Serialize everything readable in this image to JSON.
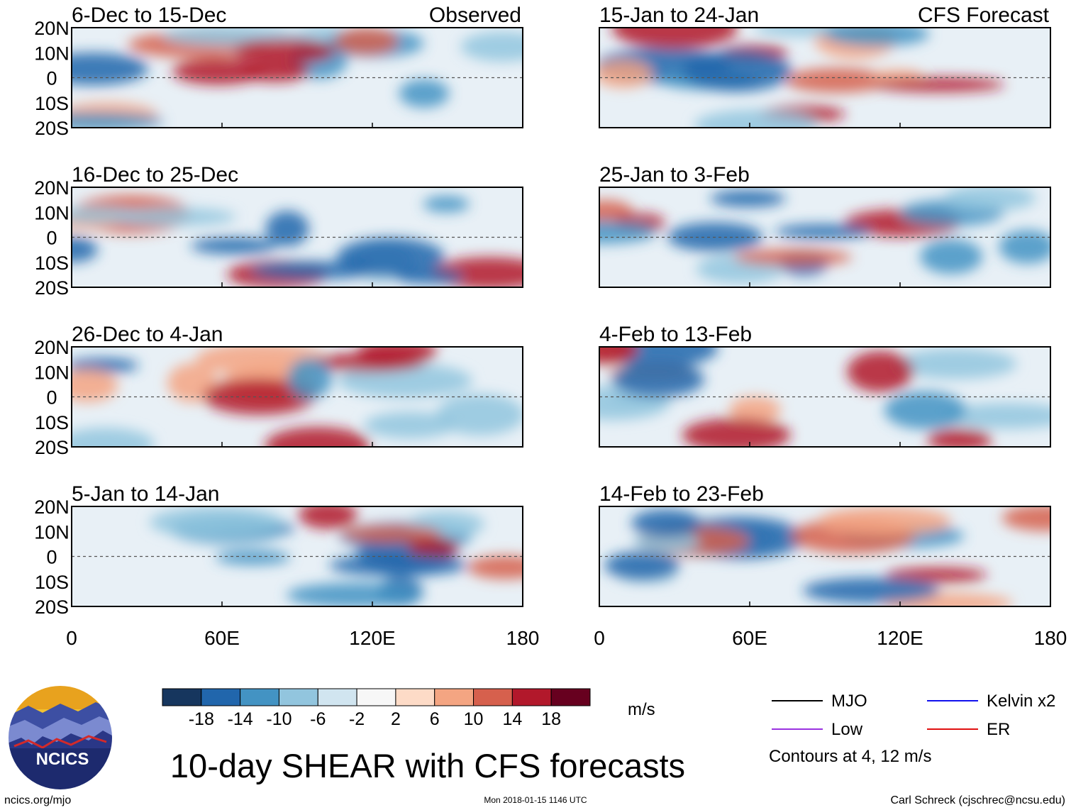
{
  "chart_data": {
    "type": "heatmap",
    "title": "10-day SHEAR with CFS forecasts",
    "units": "m/s",
    "columns": [
      {
        "label": "Observed",
        "panels": [
          "6-Dec to 15-Dec",
          "16-Dec to 25-Dec",
          "26-Dec to 4-Jan",
          "5-Jan to 14-Jan"
        ]
      },
      {
        "label": "CFS Forecast",
        "panels": [
          "15-Jan to 24-Jan",
          "25-Jan to 3-Feb",
          "4-Feb to 13-Feb",
          "14-Feb to 23-Feb"
        ]
      }
    ],
    "y_axis": {
      "ticks": [
        "20N",
        "10N",
        "0",
        "10S",
        "20S"
      ],
      "range": [
        -20,
        20
      ]
    },
    "x_axis": {
      "ticks": [
        "0",
        "60E",
        "120E",
        "180"
      ],
      "range": [
        0,
        180
      ]
    },
    "colorbar": {
      "levels": [
        "-18",
        "-14",
        "-10",
        "-6",
        "-2",
        "2",
        "6",
        "10",
        "14",
        "18"
      ],
      "colors": [
        "#16365e",
        "#2166ac",
        "#4393c3",
        "#92c5de",
        "#d1e5f0",
        "#f7f7f7",
        "#fddbc7",
        "#f4a582",
        "#d6604d",
        "#b2182b",
        "#67001f"
      ]
    },
    "legend": [
      {
        "label": "MJO",
        "color": "#000000"
      },
      {
        "label": "Kelvin x2",
        "color": "#1010ee"
      },
      {
        "label": "Low",
        "color": "#9a32e0"
      },
      {
        "label": "ER",
        "color": "#e01010"
      }
    ],
    "contour_note": "Contours at 4, 12 m/s"
  },
  "footer": {
    "logo_text": "NCICS",
    "url": "ncics.org/mjo",
    "timestamp": "Mon 2018-01-15 1146 UTC",
    "author": "Carl Schreck (cjschrec@ncsu.edu)"
  }
}
